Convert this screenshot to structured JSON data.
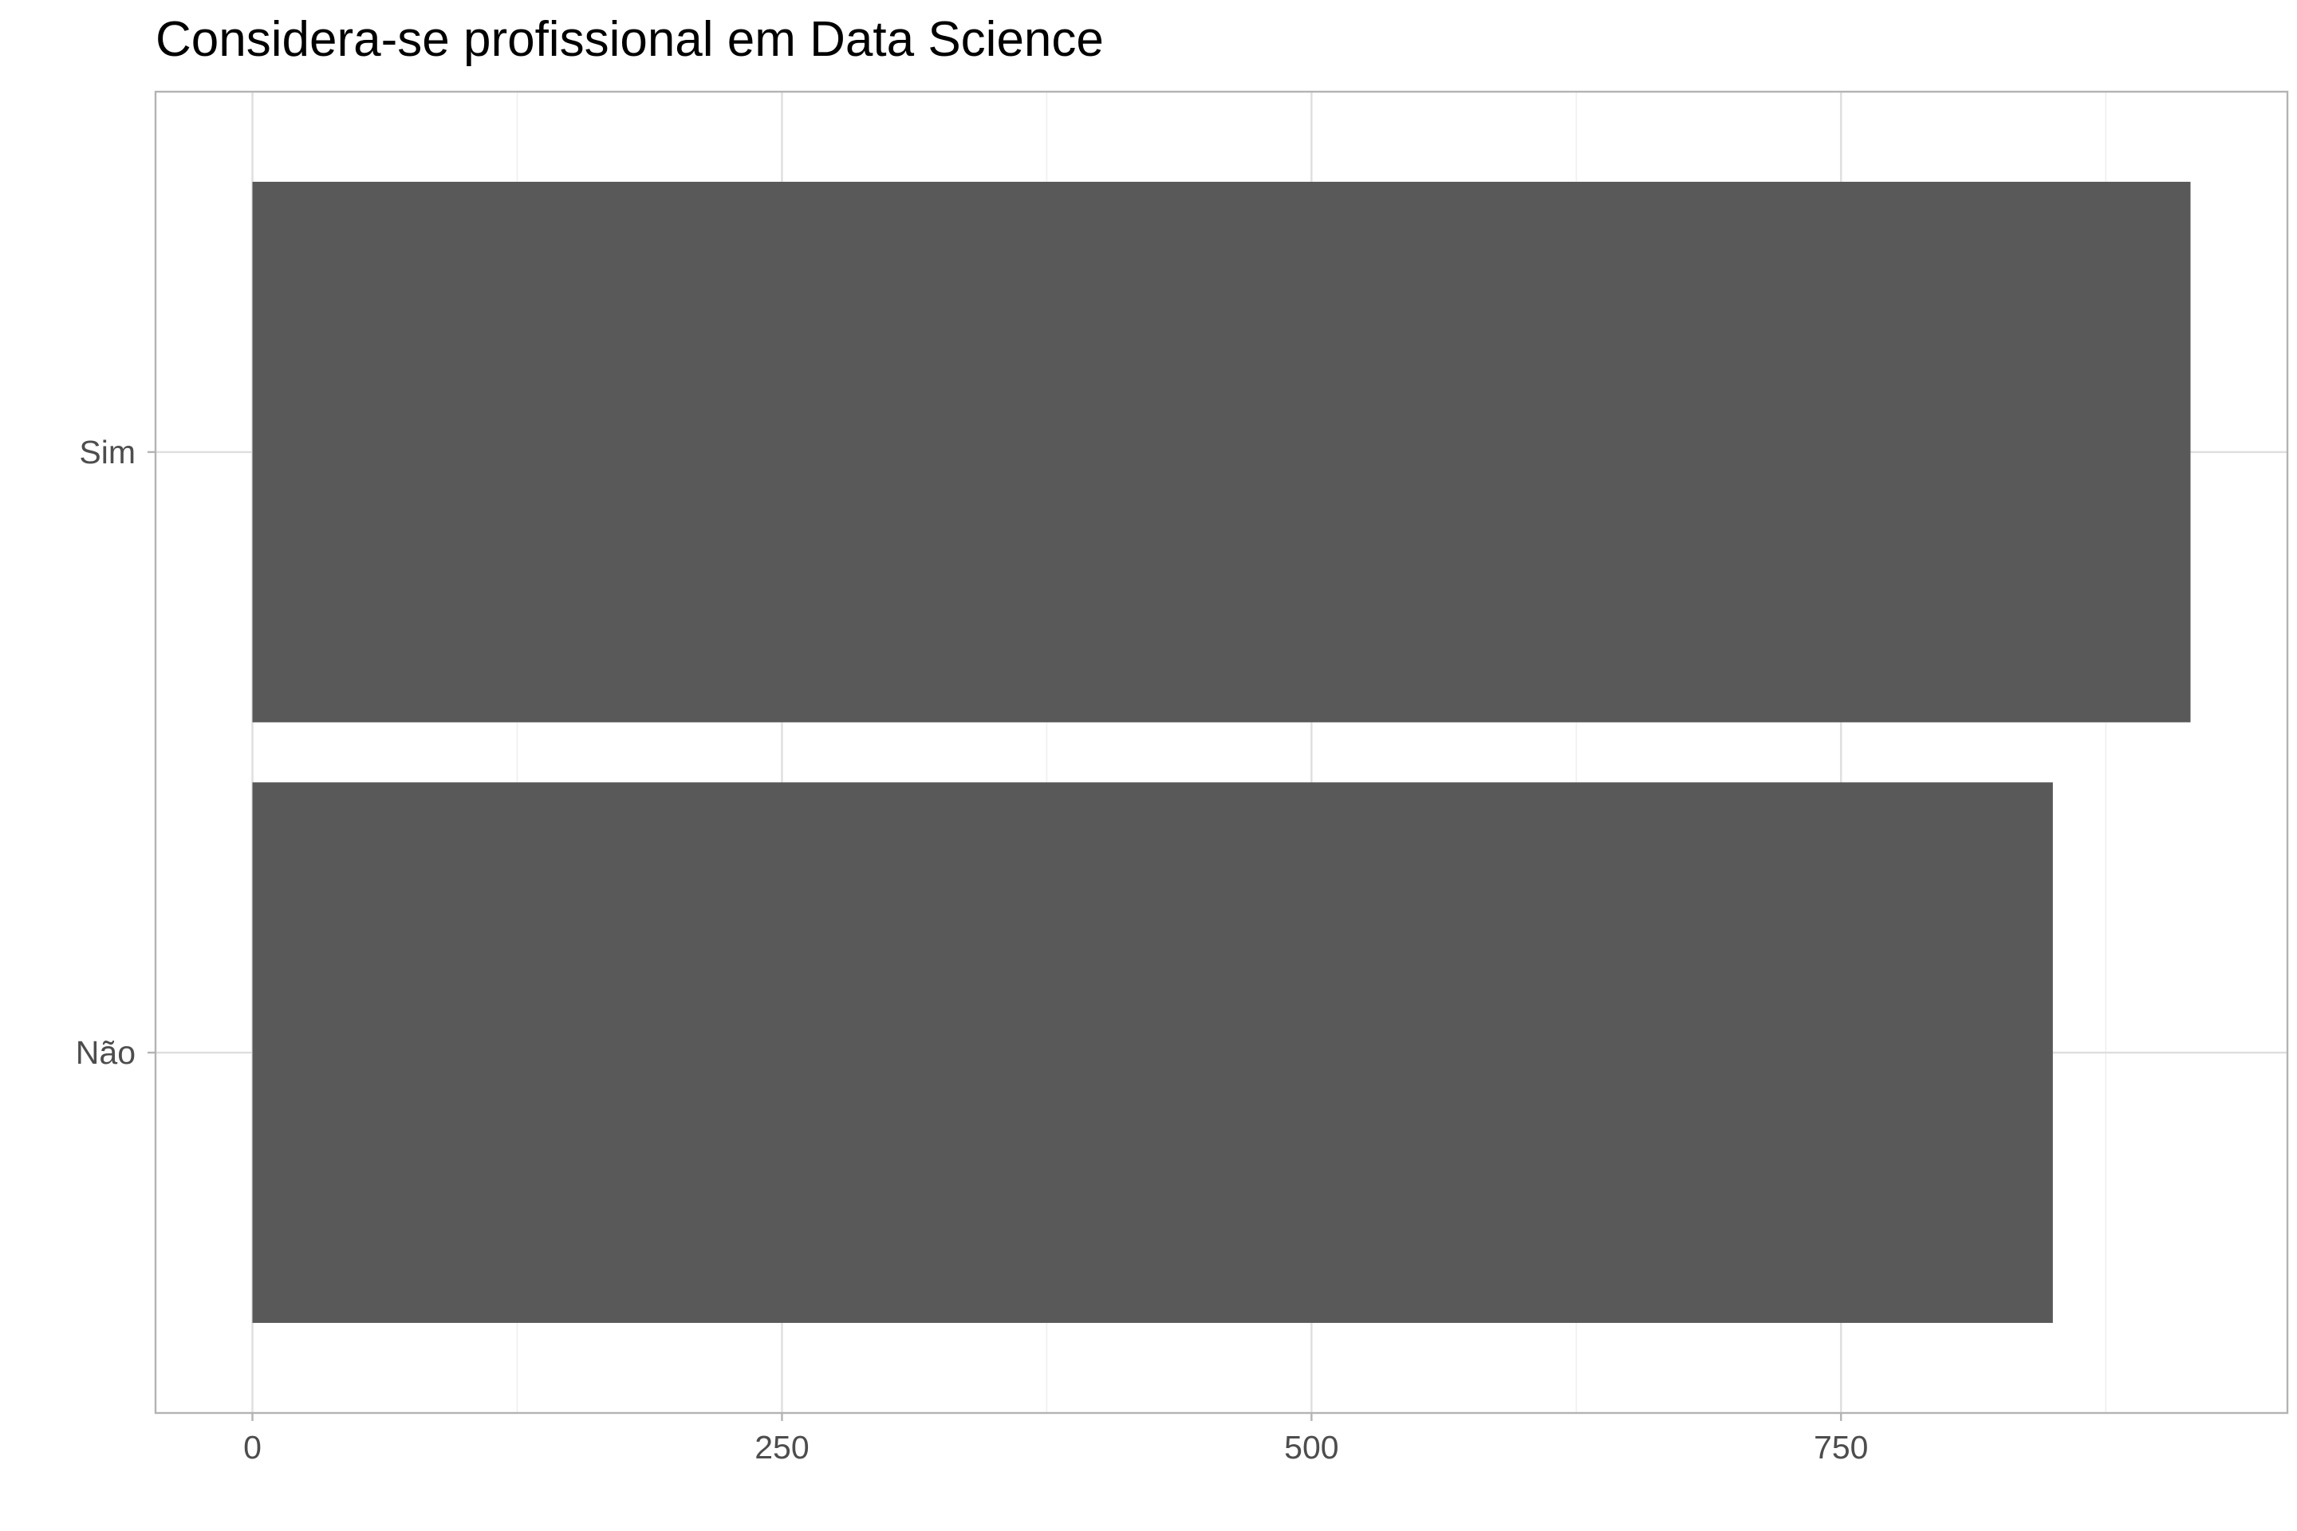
{
  "chart_data": {
    "type": "bar",
    "orientation": "horizontal",
    "title": "Considera-se profissional em Data Science",
    "xlabel": "",
    "ylabel": "",
    "categories": [
      "Não",
      "Sim"
    ],
    "values": [
      850,
      915
    ],
    "xlim": [
      -45.75,
      960.75
    ],
    "xticks": [
      0,
      250,
      500,
      750
    ],
    "xtick_labels": [
      "0",
      "250",
      "500",
      "750"
    ],
    "grid": true,
    "legend": "none",
    "colors": {
      "bar": "#595959",
      "panel_background": "#ffffff",
      "panel_border": "#b3b3b3",
      "grid_major": "#dedede",
      "grid_minor": "#efefef",
      "tick_text": "#4d4d4d",
      "title_text": "#000000"
    }
  }
}
